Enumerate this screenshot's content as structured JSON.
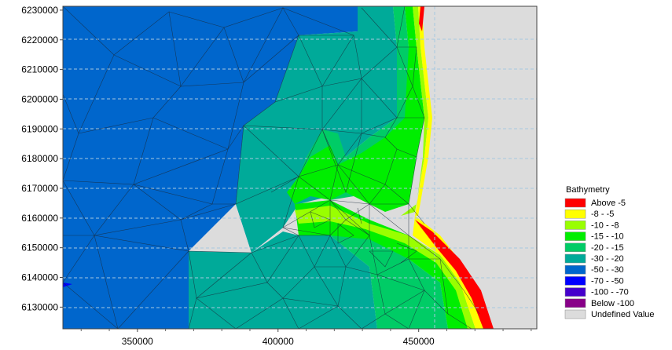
{
  "axes": {
    "x_ticks": [
      350000,
      400000,
      450000
    ],
    "y_ticks": [
      6230000,
      6220000,
      6210000,
      6200000,
      6190000,
      6180000,
      6170000,
      6160000,
      6150000,
      6140000,
      6130000
    ],
    "x_range": [
      323500,
      492000
    ],
    "y_range": [
      6122700,
      6231300
    ]
  },
  "legend": {
    "title": "Bathymetry",
    "items": [
      {
        "label": "Above   -5",
        "color": "#ff0000"
      },
      {
        "label": "   -8 -    -5",
        "color": "#ffff00"
      },
      {
        "label": "  -10 -    -8",
        "color": "#99ff00"
      },
      {
        "label": "  -15 -   -10",
        "color": "#00ee00"
      },
      {
        "label": "  -20 -   -15",
        "color": "#00cc66"
      },
      {
        "label": "  -30 -   -20",
        "color": "#00aa99"
      },
      {
        "label": "  -50 -   -30",
        "color": "#0066cc"
      },
      {
        "label": "  -70 -   -50",
        "color": "#0000ff"
      },
      {
        "label": "-100 -   -70",
        "color": "#4400cc"
      },
      {
        "label": "Below -100",
        "color": "#880088"
      },
      {
        "label": "Undefined Value",
        "color": "#dcdcdc"
      }
    ]
  },
  "colors": {
    "deep": "#0066cc",
    "mid": "#00aa99",
    "shallow": "#00cc66",
    "green": "#00ee00",
    "lime": "#99ff00",
    "yellow": "#ffff00",
    "red": "#ff0000",
    "land": "#dcdcdc",
    "grid": "#a6c8e0"
  }
}
